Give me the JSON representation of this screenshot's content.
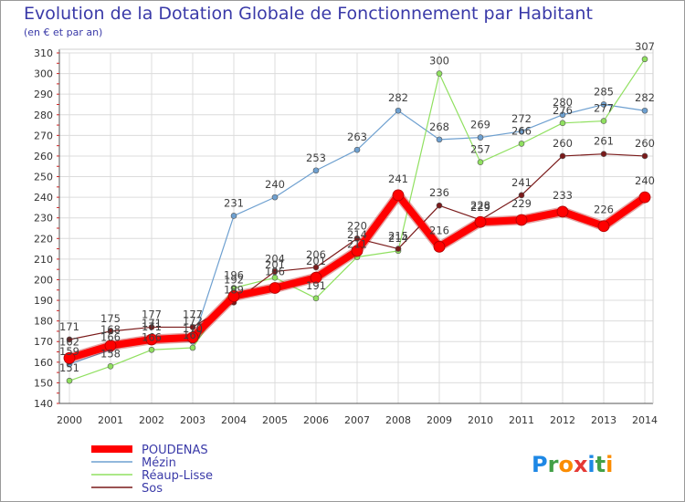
{
  "chart_data": {
    "type": "line",
    "title": "Evolution de la Dotation Globale de Fonctionnement par Habitant",
    "subtitle": "(en € et par an)",
    "x": [
      "2000",
      "2001",
      "2002",
      "2003",
      "2004",
      "2005",
      "2006",
      "2007",
      "2008",
      "2009",
      "2010",
      "2011",
      "2012",
      "2013",
      "2014"
    ],
    "ylim": [
      140,
      310
    ],
    "yticks": [
      140,
      150,
      160,
      170,
      180,
      190,
      200,
      210,
      220,
      230,
      240,
      250,
      260,
      270,
      280,
      290,
      300,
      310
    ],
    "grid": true,
    "legend_position": "bottom-left",
    "series": [
      {
        "name": "POUDENAS",
        "color": "#ff0000",
        "values": [
          162,
          168,
          171,
          172,
          192,
          196,
          201,
          214,
          241,
          216,
          228,
          229,
          233,
          226,
          240
        ]
      },
      {
        "name": "Mézin",
        "color": "#6ea0d0",
        "values": [
          159,
          166,
          171,
          170,
          231,
          240,
          253,
          263,
          282,
          268,
          269,
          272,
          280,
          285,
          282
        ]
      },
      {
        "name": "Réaup-Lisse",
        "color": "#90e060",
        "values": [
          151,
          158,
          166,
          167,
          196,
          201,
          191,
          211,
          214,
          300,
          257,
          266,
          276,
          277,
          307
        ]
      },
      {
        "name": "Sos",
        "color": "#7a1a1a",
        "values": [
          171,
          175,
          177,
          177,
          189,
          204,
          206,
          220,
          215,
          236,
          229,
          241,
          260,
          261,
          260
        ]
      }
    ]
  },
  "brand": {
    "text": "Proxiti",
    "letters": [
      "P",
      "r",
      "o",
      "x",
      "i",
      "t",
      "i"
    ],
    "colors": [
      "#1e88e5",
      "#43a047",
      "#fb8c00",
      "#e53935",
      "#1e88e5",
      "#43a047",
      "#fb8c00"
    ]
  }
}
